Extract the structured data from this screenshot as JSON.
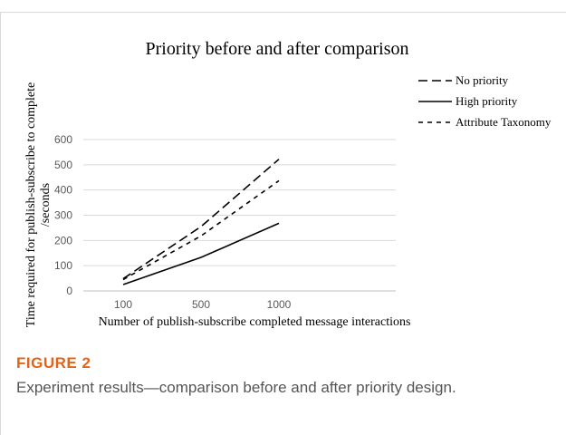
{
  "figure": {
    "label": "FIGURE 2",
    "caption": "Experiment results—comparison before and after priority design."
  },
  "chart_data": {
    "type": "line",
    "title": "Priority before and after comparison",
    "xlabel": "Number of publish-subscribe completed message interactions",
    "ylabel_lines": [
      "Time required for publish-subscribe to complete",
      "/seconds"
    ],
    "categories": [
      "100",
      "500",
      "1000"
    ],
    "ylim": [
      0,
      600
    ],
    "yticks": [
      "0",
      "100",
      "200",
      "300",
      "400",
      "500",
      "600"
    ],
    "grid": true,
    "legend_position": "top-right",
    "series": [
      {
        "name": "No priority",
        "style": "long-dash",
        "values": [
          48,
          255,
          522
        ]
      },
      {
        "name": "High priority",
        "style": "solid",
        "values": [
          25,
          133,
          268
        ]
      },
      {
        "name": "Attribute Taxonomy",
        "style": "short-dash",
        "values": [
          45,
          218,
          437
        ]
      }
    ]
  }
}
